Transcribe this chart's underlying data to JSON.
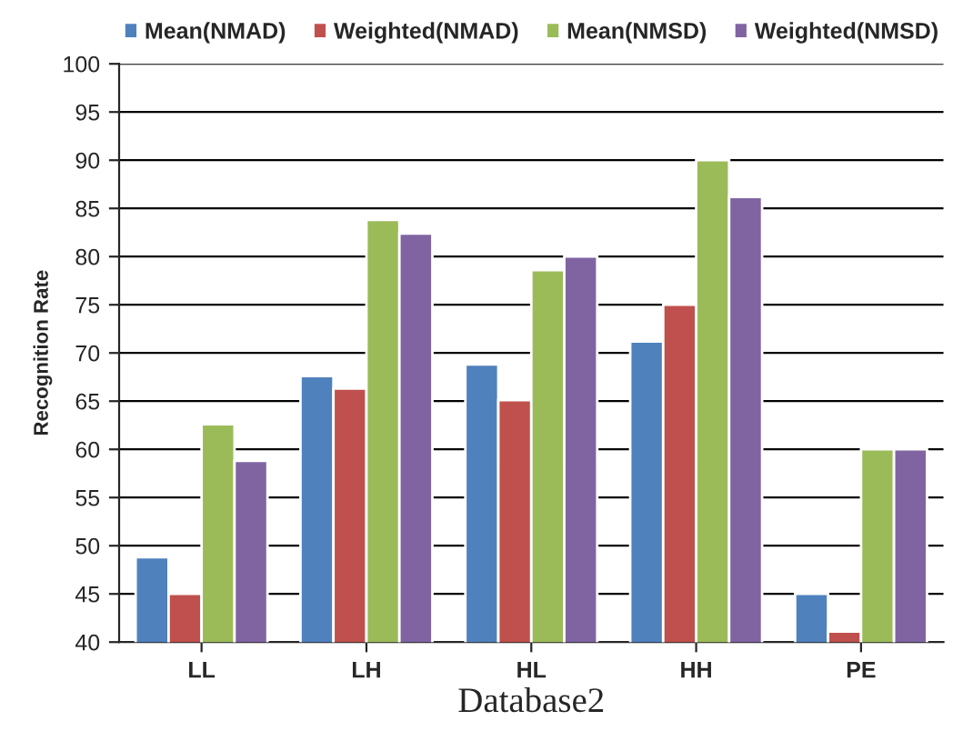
{
  "chart_data": {
    "type": "bar",
    "xlabel": "Database2",
    "ylabel": "Recognition Rate",
    "categories": [
      "LL",
      "LH",
      "HL",
      "HH",
      "PE"
    ],
    "series": [
      {
        "name": "Mean(NMAD)",
        "color": "#4f81bd",
        "values": [
          48.8,
          67.6,
          68.8,
          71.2,
          45
        ]
      },
      {
        "name": "Weighted(NMAD)",
        "color": "#c0504d",
        "values": [
          45,
          66.3,
          65.1,
          75,
          41.1
        ]
      },
      {
        "name": "Mean(NMSD)",
        "color": "#9bbb59",
        "values": [
          62.6,
          83.8,
          78.6,
          90,
          60
        ]
      },
      {
        "name": "Weighted(NMSD)",
        "color": "#8064a2",
        "values": [
          58.8,
          82.4,
          80,
          86.2,
          60
        ]
      }
    ],
    "ylim": [
      40,
      100
    ],
    "yticks": [
      40,
      45,
      50,
      55,
      60,
      65,
      70,
      75,
      80,
      85,
      90,
      95,
      100
    ],
    "grid": "y",
    "legend": "top"
  }
}
